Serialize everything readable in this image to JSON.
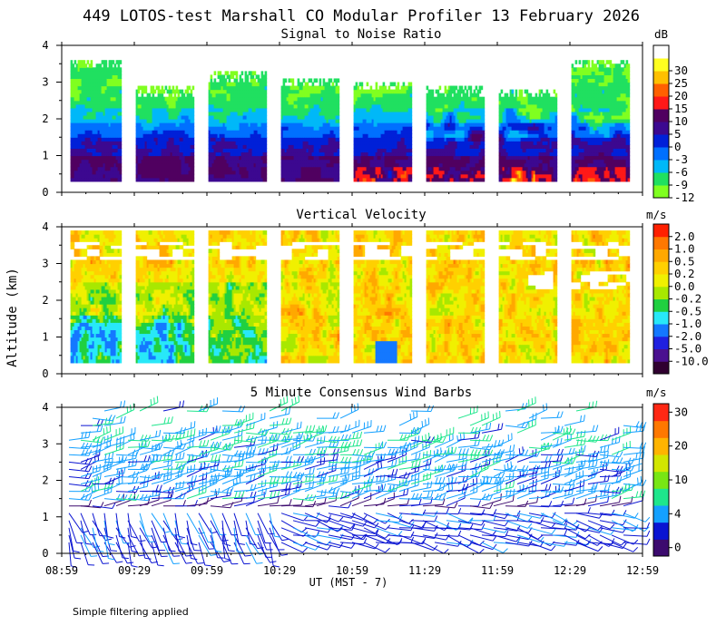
{
  "title": "449 LOTOS-test Marshall CO Modular Profiler 13 February 2026",
  "ylabel": "Altitude (km)",
  "xlabel": "UT  (MST - 7)",
  "footnote": "Simple filtering applied",
  "x_ticks": [
    "08:59",
    "09:29",
    "09:59",
    "10:29",
    "10:59",
    "11:29",
    "11:59",
    "12:29",
    "12:59"
  ],
  "y_ticks": [
    "0",
    "1",
    "2",
    "3",
    "4"
  ],
  "chart_data": [
    {
      "type": "heatmap",
      "name": "snr",
      "title": "Signal to Noise Ratio",
      "units": "dB",
      "xlim": [
        "08:59",
        "12:59"
      ],
      "ylim": [
        0,
        4
      ],
      "colorbar": [
        {
          "label": "-12",
          "color": "#80ff20"
        },
        {
          "label": "-9",
          "color": "#20e060"
        },
        {
          "label": "-6",
          "color": "#00b8f8"
        },
        {
          "label": "-3",
          "color": "#0070ff"
        },
        {
          "label": "0",
          "color": "#0020d8"
        },
        {
          "label": "5",
          "color": "#3c0890"
        },
        {
          "label": "10",
          "color": "#500060"
        },
        {
          "label": "15",
          "color": "#ff1818"
        },
        {
          "label": "20",
          "color": "#ff6000"
        },
        {
          "label": "25",
          "color": "#ffc000"
        },
        {
          "label": "30",
          "color": "#ffff20"
        },
        {
          "label": "",
          "color": "#ffffff"
        }
      ],
      "segments": [
        {
          "x0": 0.12,
          "x1": 0.82,
          "top": 3.6
        },
        {
          "x0": 1.02,
          "x1": 1.82,
          "top": 2.85
        },
        {
          "x0": 2.02,
          "x1": 2.82,
          "top": 3.25
        },
        {
          "x0": 3.02,
          "x1": 3.82,
          "top": 3.1
        },
        {
          "x0": 4.02,
          "x1": 4.82,
          "top": 3.0
        },
        {
          "x0": 5.02,
          "x1": 5.82,
          "top": 2.85
        },
        {
          "x0": 6.02,
          "x1": 6.82,
          "top": 2.8
        },
        {
          "x0": 7.02,
          "x1": 7.82,
          "top": 3.6
        }
      ]
    },
    {
      "type": "heatmap",
      "name": "vertical_velocity",
      "title": "Vertical Velocity",
      "units": "m/s",
      "xlim": [
        "08:59",
        "12:59"
      ],
      "ylim": [
        0,
        4
      ],
      "colorbar": [
        {
          "label": "-10.0",
          "color": "#300030"
        },
        {
          "label": "-5.0",
          "color": "#4a1090"
        },
        {
          "label": "-2.0",
          "color": "#2020e0"
        },
        {
          "label": "-1.0",
          "color": "#1478ff"
        },
        {
          "label": "-0.5",
          "color": "#28e8f8"
        },
        {
          "label": "-0.2",
          "color": "#20d040"
        },
        {
          "label": "0.0",
          "color": "#a8e800"
        },
        {
          "label": "0.2",
          "color": "#f0f000"
        },
        {
          "label": "0.5",
          "color": "#ffd000"
        },
        {
          "label": "1.0",
          "color": "#ffa800"
        },
        {
          "label": "2.0",
          "color": "#ff7800"
        },
        {
          "label": "",
          "color": "#ff2000"
        }
      ],
      "segments": [
        {
          "x0": 0.12,
          "x1": 0.82,
          "top": 3.9
        },
        {
          "x0": 1.02,
          "x1": 1.82,
          "top": 3.9
        },
        {
          "x0": 2.02,
          "x1": 2.82,
          "top": 3.9
        },
        {
          "x0": 3.02,
          "x1": 3.82,
          "top": 3.9
        },
        {
          "x0": 4.02,
          "x1": 4.82,
          "top": 3.9
        },
        {
          "x0": 5.02,
          "x1": 5.82,
          "top": 3.9
        },
        {
          "x0": 6.02,
          "x1": 6.82,
          "top": 3.9
        },
        {
          "x0": 7.02,
          "x1": 7.82,
          "top": 3.9
        }
      ]
    },
    {
      "type": "wind_barbs",
      "name": "wind_barbs",
      "title": "5 Minute Consensus Wind Barbs",
      "units": "m/s",
      "xlim": [
        "08:59",
        "12:59"
      ],
      "ylim": [
        0,
        4
      ],
      "colorbar": [
        {
          "label": "0",
          "color": "#3c0a6e"
        },
        {
          "label": "",
          "color": "#0a14d2"
        },
        {
          "label": "4",
          "color": "#14a0ff"
        },
        {
          "label": "",
          "color": "#1ee68c"
        },
        {
          "label": "10",
          "color": "#78e614"
        },
        {
          "label": "",
          "color": "#d2e600"
        },
        {
          "label": "20",
          "color": "#ffb400"
        },
        {
          "label": "",
          "color": "#ff7800"
        },
        {
          "label": "30",
          "color": "#ff2814"
        }
      ],
      "time_columns": 48,
      "levels_km": [
        0.3,
        0.5,
        0.7,
        0.9,
        1.1,
        1.3,
        1.5,
        1.7,
        1.9,
        2.1,
        2.3,
        2.5,
        2.7,
        2.9,
        3.1,
        3.3,
        3.5,
        3.7,
        3.9
      ]
    }
  ]
}
